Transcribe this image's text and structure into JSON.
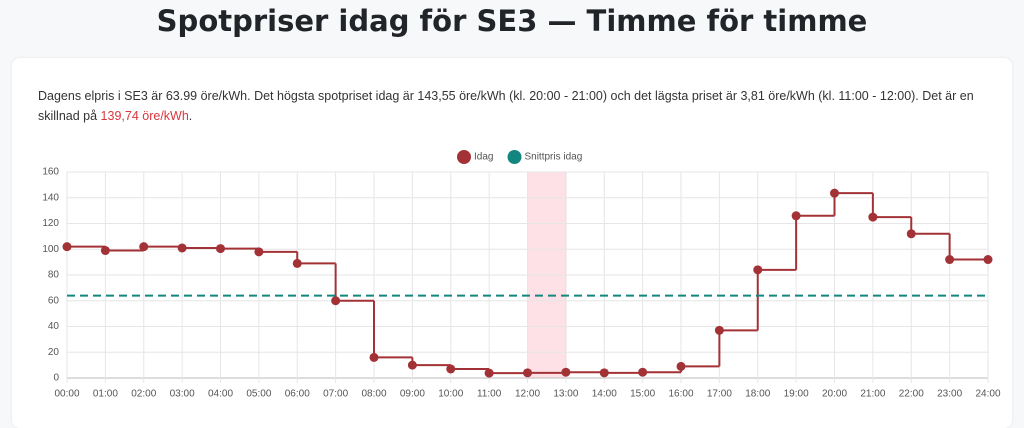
{
  "page_title": "Spotpriser idag för SE3 — Timme för timme",
  "description": {
    "text": "Dagens elpris i SE3 är 63.99 öre/kWh. Det högsta spotpriset idag är 143,55 öre/kWh (kl. 20:00 - 21:00) och det lägsta priset är 3,81 öre/kWh (kl. 11:00 - 12:00). Det är en skillnad på ",
    "highlight": "139,74 öre/kWh",
    "end": "."
  },
  "chart_data": {
    "type": "step",
    "categories": [
      "00:00",
      "01:00",
      "02:00",
      "03:00",
      "04:00",
      "05:00",
      "06:00",
      "07:00",
      "08:00",
      "09:00",
      "10:00",
      "11:00",
      "12:00",
      "13:00",
      "14:00",
      "15:00",
      "16:00",
      "17:00",
      "18:00",
      "19:00",
      "20:00",
      "21:00",
      "22:00",
      "23:00",
      "24:00"
    ],
    "series": [
      {
        "name": "Idag",
        "color": "#a33236",
        "values": [
          102,
          99,
          102,
          101,
          100.5,
          98,
          89,
          60,
          16,
          10,
          7,
          3.81,
          4,
          4.5,
          4,
          4.5,
          9,
          37,
          84,
          126,
          143.55,
          125,
          112,
          92,
          92
        ]
      },
      {
        "name": "Snittpris idag",
        "color": "#12867f",
        "value": 64,
        "dashed": true
      }
    ],
    "highlight_band": [
      12,
      13
    ],
    "highlight_color": "#fde1e7",
    "ylim": [
      0,
      160
    ],
    "yticks": [
      0,
      20,
      40,
      60,
      80,
      100,
      120,
      140,
      160
    ],
    "grid": true
  }
}
